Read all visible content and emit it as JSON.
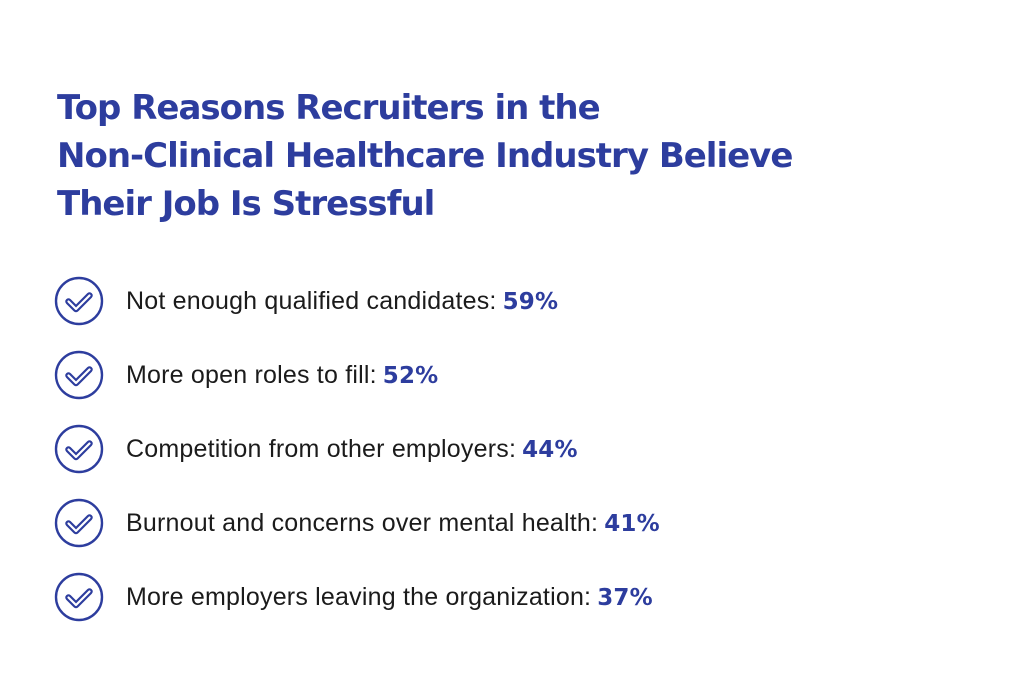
{
  "title": {
    "lines": [
      "Top Reasons Recruiters in the",
      "Non-Clinical Healthcare Industry Believe",
      "Their Job Is Stressful"
    ]
  },
  "colors": {
    "accent": "#2d3d9e",
    "text": "#1b1b1b",
    "background": "#ffffff"
  },
  "reasons": [
    {
      "icon": "check-circle-icon",
      "label": "Not enough qualified candidates:",
      "value": "59%"
    },
    {
      "icon": "check-circle-icon",
      "label": "More open roles to fill:",
      "value": "52%"
    },
    {
      "icon": "check-circle-icon",
      "label": "Competition from other employers:",
      "value": "44%"
    },
    {
      "icon": "check-circle-icon",
      "label": "Burnout and concerns over mental health:",
      "value": "41%"
    },
    {
      "icon": "check-circle-icon",
      "label": "More employers leaving the organization:",
      "value": "37%"
    }
  ]
}
